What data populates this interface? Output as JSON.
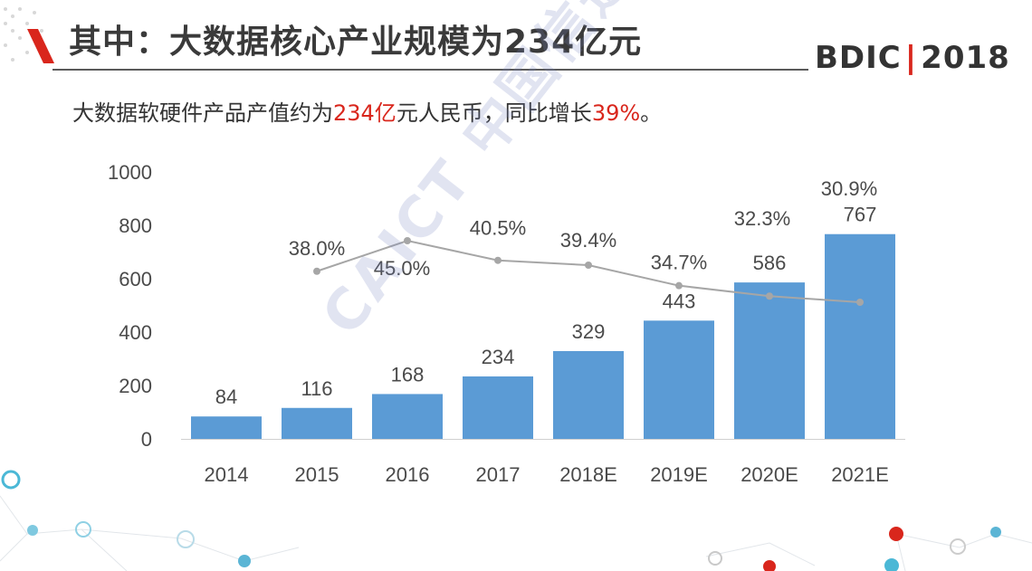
{
  "header": {
    "title": "其中：大数据核心产业规模为234亿元",
    "logo_text": "BDIC",
    "logo_divider": "|",
    "logo_year": "2018"
  },
  "subtitle": {
    "part1": "大数据软硬件产品产值约为",
    "highlight1": "234亿",
    "part2": "元人民币，同比增长",
    "highlight2": "39%",
    "part3": "。"
  },
  "watermark": "CAICT 中国信通院",
  "colors": {
    "bar": "#5b9bd5",
    "line": "#a6a6a6",
    "accent_red": "#d9261c",
    "title": "#3a3a3a"
  },
  "chart_data": {
    "type": "bar",
    "categories": [
      "2014",
      "2015",
      "2016",
      "2017",
      "2018E",
      "2019E",
      "2020E",
      "2021E"
    ],
    "series": [
      {
        "type": "bar",
        "values": [
          84,
          116,
          168,
          234,
          329,
          443,
          586,
          767
        ]
      },
      {
        "type": "line",
        "values": [
          null,
          38.0,
          45.0,
          40.5,
          39.4,
          34.7,
          32.3,
          30.9
        ],
        "labels": [
          "",
          "38.0%",
          "45.0%",
          "40.5%",
          "39.4%",
          "34.7%",
          "32.3%",
          "30.9%"
        ]
      }
    ],
    "y_ticks": [
      0,
      200,
      400,
      600,
      800,
      1000
    ],
    "ylim": [
      0,
      1000
    ],
    "line_ylim": [
      0,
      100
    ],
    "grid": false,
    "legend": "none"
  }
}
